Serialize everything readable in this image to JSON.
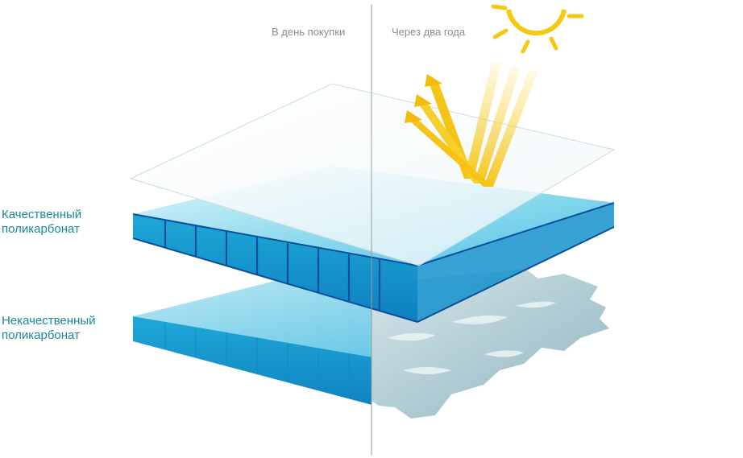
{
  "captions": {
    "left": "В день покупки",
    "right": "Через два года"
  },
  "labels": {
    "quality_line1": "Качественный",
    "quality_line2": "поликарбонат",
    "poor_line1": "Некачественный",
    "poor_line2": "поликарбонат"
  },
  "colors": {
    "panel_top": "#6fd1e8",
    "panel_face": "#1aa9d6",
    "panel_dark": "#0a4f9c",
    "degraded": "#a9c6cf",
    "sun": "#f5c90f",
    "divider": "#9a9a9a",
    "label": "#178a9a"
  },
  "icons": {
    "sun": "sun-icon",
    "rays": "reflected-rays-icon"
  }
}
